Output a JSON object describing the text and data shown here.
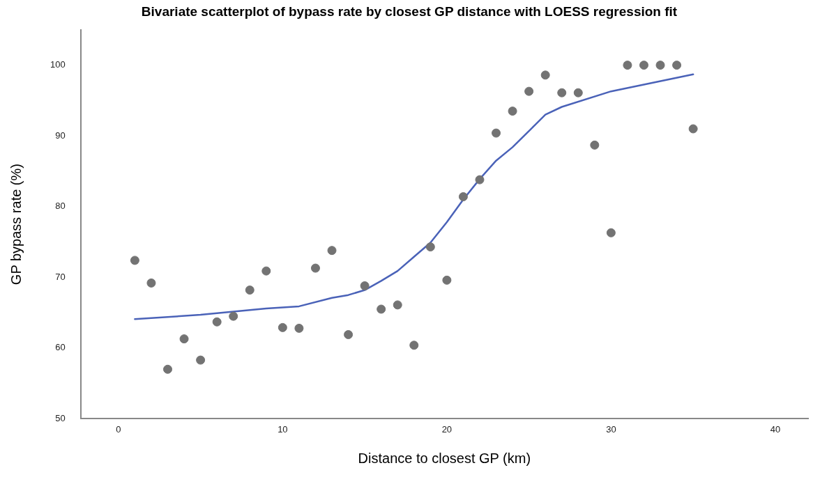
{
  "chart_data": {
    "type": "scatter",
    "title": "Bivariate scatterplot of bypass rate by closest GP distance with LOESS regression fit",
    "xlabel": "Distance to closest GP (km)",
    "ylabel": "GP bypass rate (%)",
    "xlim": [
      -2.3,
      42
    ],
    "xticks": [
      0,
      10,
      20,
      30,
      40
    ],
    "ylim": [
      50,
      105
    ],
    "yticks": [
      50,
      60,
      70,
      80,
      90,
      100
    ],
    "grid": false,
    "legend": false,
    "series": [
      {
        "type": "scatter",
        "marker": "circle",
        "color": "#737373",
        "x": [
          1,
          2,
          3,
          4,
          5,
          6,
          7,
          8,
          9,
          10,
          11,
          12,
          13,
          14,
          15,
          16,
          17,
          18,
          19,
          20,
          21,
          22,
          23,
          24,
          25,
          26,
          27,
          28,
          29,
          30,
          31,
          32,
          33,
          34,
          35
        ],
        "values": [
          72.4,
          69.2,
          57.0,
          61.3,
          58.3,
          63.7,
          64.5,
          68.2,
          70.9,
          62.9,
          62.8,
          71.3,
          73.8,
          61.9,
          68.8,
          65.5,
          66.1,
          60.4,
          74.3,
          69.6,
          81.4,
          83.8,
          90.4,
          93.5,
          96.3,
          98.6,
          96.1,
          96.1,
          88.7,
          76.3,
          100,
          100,
          100,
          100,
          91.0
        ]
      },
      {
        "type": "line",
        "marker": "none",
        "line_style": "solid",
        "color": "#4a62b8",
        "x": [
          1,
          5,
          9,
          11,
          13,
          14,
          15,
          16,
          17,
          18,
          19,
          20,
          21,
          22,
          23,
          24,
          25,
          26,
          27,
          30,
          35
        ],
        "values": [
          64.1,
          64.7,
          65.6,
          65.9,
          67.1,
          67.5,
          68.2,
          69.5,
          70.9,
          72.9,
          74.9,
          77.8,
          81.0,
          83.9,
          86.5,
          88.4,
          90.7,
          93.0,
          94.1,
          96.3,
          98.7
        ]
      }
    ]
  }
}
